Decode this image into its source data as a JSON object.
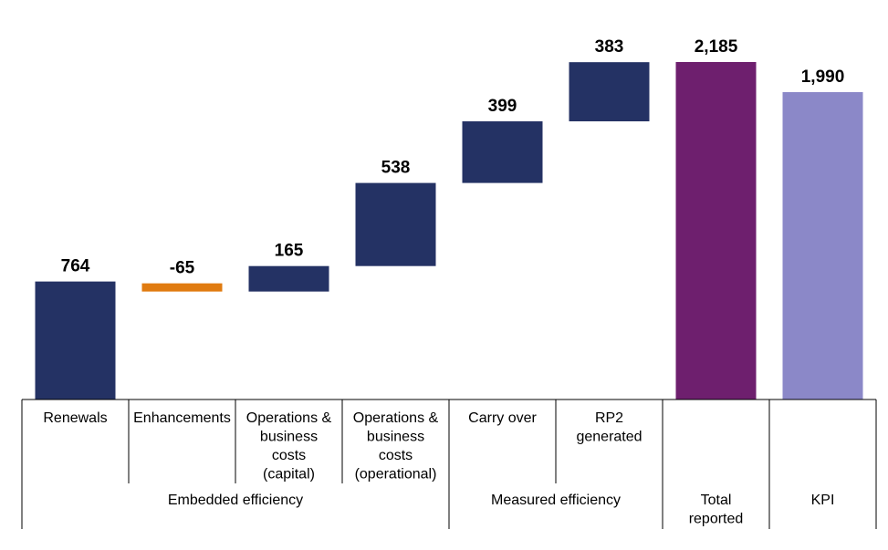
{
  "chart_data": {
    "type": "bar",
    "subtype": "waterfall",
    "title": "",
    "xlabel": "",
    "ylabel": "",
    "ylim": [
      0,
      2300
    ],
    "grid": false,
    "categories": [
      [
        "Renewals"
      ],
      [
        "Enhancements"
      ],
      [
        "Operations &",
        "business",
        "costs",
        "(capital)"
      ],
      [
        "Operations &",
        "business",
        "costs",
        "(operational)"
      ],
      [
        "Carry over"
      ],
      [
        "RP2",
        "generated"
      ],
      [
        ""
      ],
      [
        ""
      ]
    ],
    "groups": [
      {
        "label": [
          "Embedded efficiency"
        ],
        "span": 4
      },
      {
        "label": [
          "Measured efficiency"
        ],
        "span": 2
      },
      {
        "label": [
          "Total",
          "reported"
        ],
        "span": 1
      },
      {
        "label": [
          "KPI"
        ],
        "span": 1
      }
    ],
    "bars": [
      {
        "value": 764,
        "label": "764",
        "kind": "increase"
      },
      {
        "value": -65,
        "label": "-65",
        "kind": "decrease"
      },
      {
        "value": 165,
        "label": "165",
        "kind": "increase"
      },
      {
        "value": 538,
        "label": "538",
        "kind": "increase"
      },
      {
        "value": 399,
        "label": "399",
        "kind": "increase"
      },
      {
        "value": 383,
        "label": "383",
        "kind": "increase"
      },
      {
        "value": 2185,
        "label": "2,185",
        "kind": "total"
      },
      {
        "value": 1990,
        "label": "1,990",
        "kind": "kpi"
      }
    ],
    "colors": {
      "increase": "#243264",
      "decrease": "#e07b10",
      "total": "#6e1f6e",
      "kpi": "#8b88c8"
    }
  }
}
